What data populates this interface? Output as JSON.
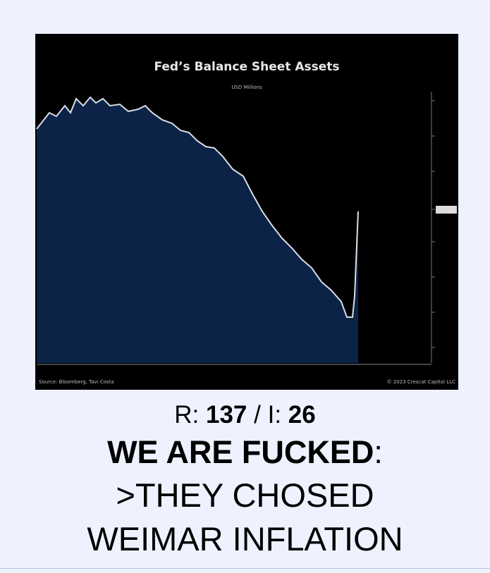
{
  "thread": {
    "image": {
      "title": "Fed’s Balance Sheet Assets",
      "subtitle": "USD Millions",
      "source": "Source: Bloomberg, Tavi Costa",
      "copyright": "© 2023 Crescat Capital LLC"
    },
    "replies_label": "R:",
    "replies": "137",
    "separator": "/",
    "images_label": "I:",
    "images": "26",
    "subject": "WE ARE FUCKED",
    "subject_colon": ":",
    "teaser": ">THEY CHOSED WEIMAR INFLATION"
  }
}
